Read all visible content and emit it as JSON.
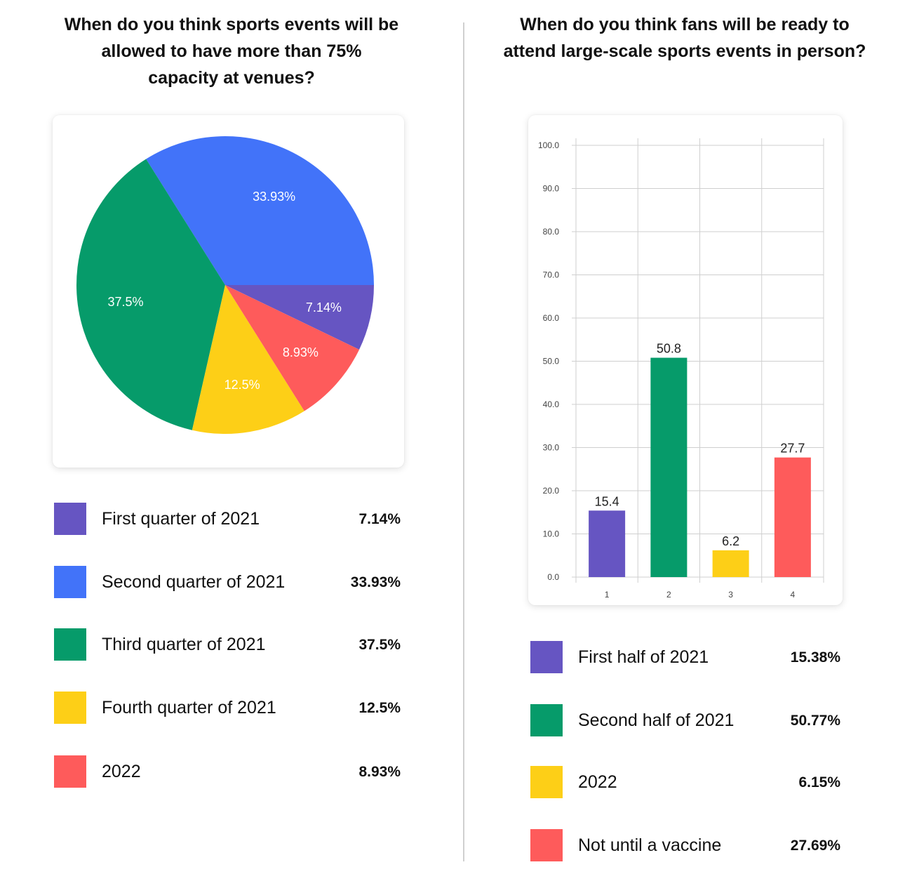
{
  "left": {
    "title_lines": [
      "When do you think sports events will be",
      "allowed to have more than 75%",
      "capacity at venues?"
    ]
  },
  "right": {
    "title_lines": [
      "When do you think fans will be ready to",
      "attend large-scale sports events in person?"
    ]
  },
  "chart_data": [
    {
      "type": "pie",
      "title": "When do you think sports events will be allowed to have more than 75% capacity at venues?",
      "categories": [
        "First quarter of 2021",
        "Second quarter of 2021",
        "Third quarter of 2021",
        "Fourth quarter of 2021",
        "2022"
      ],
      "values": [
        7.14,
        33.93,
        37.5,
        12.5,
        8.93
      ],
      "slice_labels": [
        "7.14%",
        "33.93%",
        "37.5%",
        "12.5%",
        "8.93%"
      ],
      "colors": [
        "#6655c2",
        "#4273f9",
        "#069b6a",
        "#fdcf17",
        "#fe5b5b"
      ],
      "legend": [
        {
          "label": "First quarter of 2021",
          "value": "7.14%",
          "color": "#6655c2"
        },
        {
          "label": "Second quarter of 2021",
          "value": "33.93%",
          "color": "#4273f9"
        },
        {
          "label": "Third quarter of 2021",
          "value": "37.5%",
          "color": "#069b6a"
        },
        {
          "label": "Fourth quarter of 2021",
          "value": "12.5%",
          "color": "#fdcf17"
        },
        {
          "label": "2022",
          "value": "8.93%",
          "color": "#fe5b5b"
        }
      ]
    },
    {
      "type": "bar",
      "title": "When do you think fans will be ready to attend large-scale sports events in person?",
      "categories": [
        "1",
        "2",
        "3",
        "4"
      ],
      "values": [
        15.4,
        50.8,
        6.2,
        27.7
      ],
      "bar_labels": [
        "15.4",
        "50.8",
        "6.2",
        "27.7"
      ],
      "colors": [
        "#6655c2",
        "#069b6a",
        "#fdcf17",
        "#fe5b5b"
      ],
      "ylim": [
        0,
        100
      ],
      "yticks": [
        "0.0",
        "10.0",
        "20.0",
        "30.0",
        "40.0",
        "50.0",
        "60.0",
        "70.0",
        "80.0",
        "90.0",
        "100.0"
      ],
      "grid": true,
      "legend": [
        {
          "label": "First half of 2021",
          "value": "15.38%",
          "color": "#6655c2"
        },
        {
          "label": "Second half of 2021",
          "value": "50.77%",
          "color": "#069b6a"
        },
        {
          "label": "2022",
          "value": "6.15%",
          "color": "#fdcf17"
        },
        {
          "label": "Not until a vaccine",
          "value": "27.69%",
          "color": "#fe5b5b"
        }
      ]
    }
  ]
}
